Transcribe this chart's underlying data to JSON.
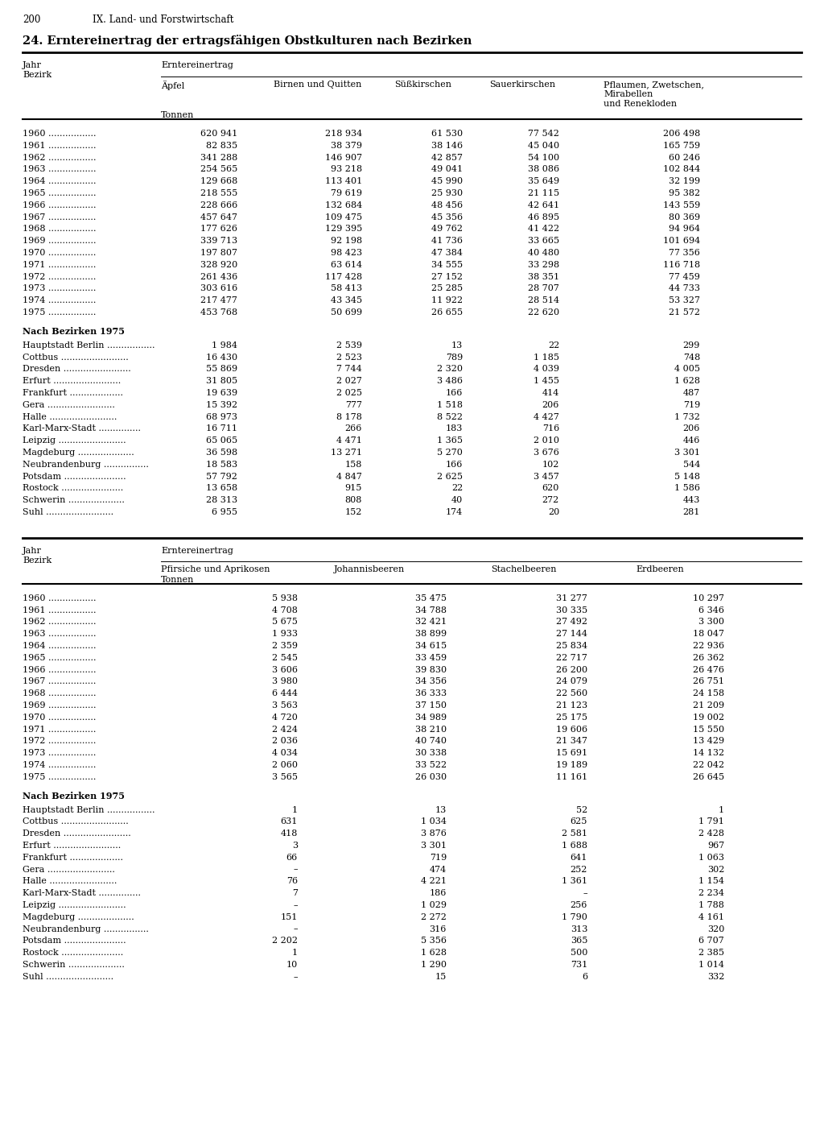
{
  "page_num": "200",
  "section": "IX. Land- und Forstwirtschaft",
  "title": "24. Erntereinertrag der ertragsfähigen Obstkulturen nach Bezirken",
  "table1": {
    "header_row2_cols": [
      "Äpfel",
      "Birnen und Quitten",
      "Süßkirschen",
      "Sauerkirschen",
      "Pflaumen, Zwetschen,\nMirabellen\nund Renekloden"
    ],
    "unit": "Tonnen",
    "years_data": [
      [
        "1960",
        "620 941",
        "218 934",
        "61 530",
        "77 542",
        "206 498"
      ],
      [
        "1961",
        "82 835",
        "38 379",
        "38 146",
        "45 040",
        "165 759"
      ],
      [
        "1962",
        "341 288",
        "146 907",
        "42 857",
        "54 100",
        "60 246"
      ],
      [
        "1963",
        "254 565",
        "93 218",
        "49 041",
        "38 086",
        "102 844"
      ],
      [
        "1964",
        "129 668",
        "113 401",
        "45 990",
        "35 649",
        "32 199"
      ],
      [
        "1965",
        "218 555",
        "79 619",
        "25 930",
        "21 115",
        "95 382"
      ],
      [
        "1966",
        "228 666",
        "132 684",
        "48 456",
        "42 641",
        "143 559"
      ],
      [
        "1967",
        "457 647",
        "109 475",
        "45 356",
        "46 895",
        "80 369"
      ],
      [
        "1968",
        "177 626",
        "129 395",
        "49 762",
        "41 422",
        "94 964"
      ],
      [
        "1969",
        "339 713",
        "92 198",
        "41 736",
        "33 665",
        "101 694"
      ],
      [
        "1970",
        "197 807",
        "98 423",
        "47 384",
        "40 480",
        "77 356"
      ],
      [
        "1971",
        "328 920",
        "63 614",
        "34 555",
        "33 298",
        "116 718"
      ],
      [
        "1972",
        "261 436",
        "117 428",
        "27 152",
        "38 351",
        "77 459"
      ],
      [
        "1973",
        "303 616",
        "58 413",
        "25 285",
        "28 707",
        "44 733"
      ],
      [
        "1974",
        "217 477",
        "43 345",
        "11 922",
        "28 514",
        "53 327"
      ],
      [
        "1975",
        "453 768",
        "50 699",
        "26 655",
        "22 620",
        "21 572"
      ]
    ],
    "bezirken_data": [
      [
        "Hauptstadt Berlin",
        "1 984",
        "2 539",
        "13",
        "22",
        "299"
      ],
      [
        "Cottbus",
        "16 430",
        "2 523",
        "789",
        "1 185",
        "748"
      ],
      [
        "Dresden",
        "55 869",
        "7 744",
        "2 320",
        "4 039",
        "4 005"
      ],
      [
        "Erfurt",
        "31 805",
        "2 027",
        "3 486",
        "1 455",
        "1 628"
      ],
      [
        "Frankfurt",
        "19 639",
        "2 025",
        "166",
        "414",
        "487"
      ],
      [
        "Gera",
        "15 392",
        "777",
        "1 518",
        "206",
        "719"
      ],
      [
        "Halle",
        "68 973",
        "8 178",
        "8 522",
        "4 427",
        "1 732"
      ],
      [
        "Karl-Marx-Stadt",
        "16 711",
        "266",
        "183",
        "716",
        "206"
      ],
      [
        "Leipzig",
        "65 065",
        "4 471",
        "1 365",
        "2 010",
        "446"
      ],
      [
        "Magdeburg",
        "36 598",
        "13 271",
        "5 270",
        "3 676",
        "3 301"
      ],
      [
        "Neubrandenburg",
        "18 583",
        "158",
        "166",
        "102",
        "544"
      ],
      [
        "Potsdam",
        "57 792",
        "4 847",
        "2 625",
        "3 457",
        "5 148"
      ],
      [
        "Rostock",
        "13 658",
        "915",
        "22",
        "620",
        "1 586"
      ],
      [
        "Schwerin",
        "28 313",
        "808",
        "40",
        "272",
        "443"
      ],
      [
        "Suhl",
        "6 955",
        "152",
        "174",
        "20",
        "281"
      ]
    ]
  },
  "table2": {
    "header_row2_cols": [
      "Pfirsiche und Aprikosen",
      "Johannisbeeren",
      "Stachelbeeren",
      "Erdbeeren"
    ],
    "unit": "Tonnen",
    "years_data": [
      [
        "1960",
        "5 938",
        "35 475",
        "31 277",
        "10 297"
      ],
      [
        "1961",
        "4 708",
        "34 788",
        "30 335",
        "6 346"
      ],
      [
        "1962",
        "5 675",
        "32 421",
        "27 492",
        "3 300"
      ],
      [
        "1963",
        "1 933",
        "38 899",
        "27 144",
        "18 047"
      ],
      [
        "1964",
        "2 359",
        "34 615",
        "25 834",
        "22 936"
      ],
      [
        "1965",
        "2 545",
        "33 459",
        "22 717",
        "26 362"
      ],
      [
        "1966",
        "3 606",
        "39 830",
        "26 200",
        "26 476"
      ],
      [
        "1967",
        "3 980",
        "34 356",
        "24 079",
        "26 751"
      ],
      [
        "1968",
        "6 444",
        "36 333",
        "22 560",
        "24 158"
      ],
      [
        "1969",
        "3 563",
        "37 150",
        "21 123",
        "21 209"
      ],
      [
        "1970",
        "4 720",
        "34 989",
        "25 175",
        "19 002"
      ],
      [
        "1971",
        "2 424",
        "38 210",
        "19 606",
        "15 550"
      ],
      [
        "1972",
        "2 036",
        "40 740",
        "21 347",
        "13 429"
      ],
      [
        "1973",
        "4 034",
        "30 338",
        "15 691",
        "14 132"
      ],
      [
        "1974",
        "2 060",
        "33 522",
        "19 189",
        "22 042"
      ],
      [
        "1975",
        "3 565",
        "26 030",
        "11 161",
        "26 645"
      ]
    ],
    "bezirken_data": [
      [
        "Hauptstadt Berlin",
        "1",
        "13",
        "52",
        "1"
      ],
      [
        "Cottbus",
        "631",
        "1 034",
        "625",
        "1 791"
      ],
      [
        "Dresden",
        "418",
        "3 876",
        "2 581",
        "2 428"
      ],
      [
        "Erfurt",
        "3",
        "3 301",
        "1 688",
        "967"
      ],
      [
        "Frankfurt",
        "66",
        "719",
        "641",
        "1 063"
      ],
      [
        "Gera",
        "–",
        "474",
        "252",
        "302"
      ],
      [
        "Halle",
        "76",
        "4 221",
        "1 361",
        "1 154"
      ],
      [
        "Karl-Marx-Stadt",
        "7",
        "186",
        "–",
        "2 234"
      ],
      [
        "Leipzig",
        "–",
        "1 029",
        "256",
        "1 788"
      ],
      [
        "Magdeburg",
        "151",
        "2 272",
        "1 790",
        "4 161"
      ],
      [
        "Neubrandenburg",
        "–",
        "316",
        "313",
        "320"
      ],
      [
        "Potsdam",
        "2 202",
        "5 356",
        "365",
        "6 707"
      ],
      [
        "Rostock",
        "1",
        "1 628",
        "500",
        "2 385"
      ],
      [
        "Schwerin",
        "10",
        "1 290",
        "731",
        "1 014"
      ],
      [
        "Suhl",
        "–",
        "15",
        "6",
        "332"
      ]
    ]
  },
  "bg_color": "#ffffff",
  "text_color": "#000000",
  "dots_map": {
    "Hauptstadt Berlin": ".................",
    "Cottbus": "........................",
    "Dresden": "........................",
    "Erfurt": "........................",
    "Frankfurt": "...................",
    "Gera": "........................",
    "Halle": "........................",
    "Karl-Marx-Stadt": "...............",
    "Leipzig": "........................",
    "Magdeburg": "....................",
    "Neubrandenburg": "................",
    "Potsdam": "......................",
    "Rostock": "......................",
    "Schwerin": "....................",
    "Suhl": "........................"
  }
}
